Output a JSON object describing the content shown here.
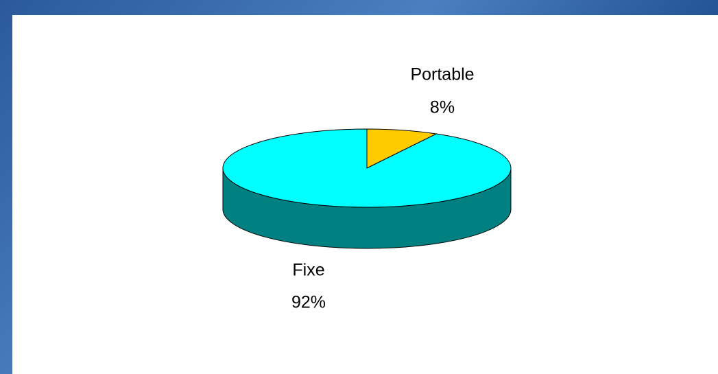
{
  "chart_data": {
    "type": "pie",
    "categories": [
      "Portable",
      "Fixe"
    ],
    "values": [
      8,
      92
    ],
    "value_labels": [
      "8%",
      "92%"
    ],
    "colors": [
      "#ffcc00",
      "#00ffff"
    ]
  }
}
